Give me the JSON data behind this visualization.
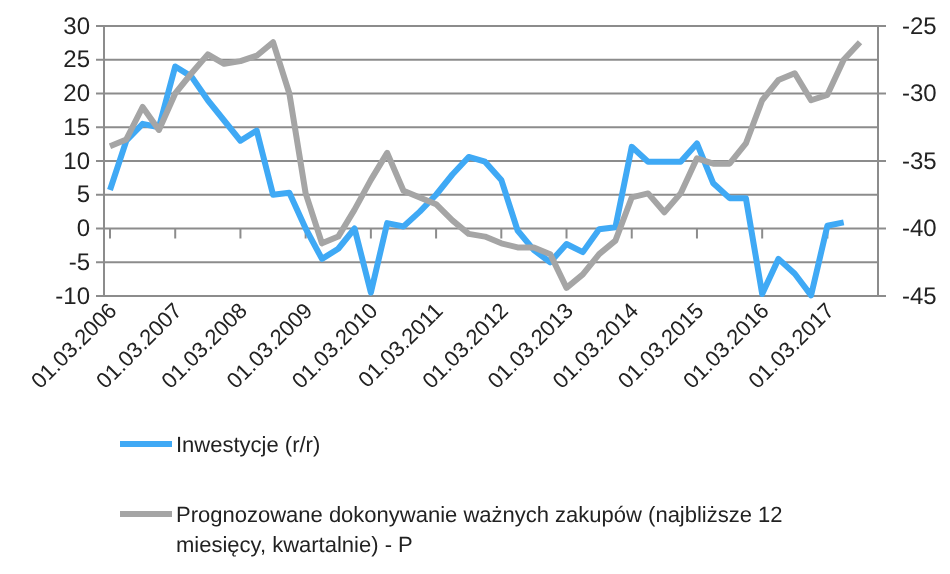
{
  "chart_data": {
    "type": "line",
    "categories": [
      "01.03.2006",
      null,
      null,
      null,
      "01.03.2007",
      null,
      null,
      null,
      "01.03.2008",
      null,
      null,
      null,
      "01.03.2009",
      null,
      null,
      null,
      "01.03.2010",
      null,
      null,
      null,
      "01.03.2011",
      null,
      null,
      null,
      "01.03.2012",
      null,
      null,
      null,
      "01.03.2013",
      null,
      null,
      null,
      "01.03.2014",
      null,
      null,
      null,
      "01.03.2015",
      null,
      null,
      null,
      "01.03.2016",
      null,
      null,
      null,
      "01.03.2017",
      null,
      null
    ],
    "series": [
      {
        "name": "Inwestycje (r/r)",
        "color": "#3fa9f5",
        "values": [
          5.7,
          13,
          15.5,
          15,
          24,
          22.5,
          19,
          16,
          13,
          14.5,
          5,
          5.3,
          0,
          -4.5,
          -3,
          0,
          -9.5,
          0.8,
          0.3,
          2.5,
          5,
          8,
          10.6,
          9.9,
          7.2,
          -0.3,
          -3.2,
          -5,
          -2.3,
          -3.5,
          -0.1,
          0.2,
          12.1,
          9.9,
          9.9,
          9.9,
          12.6,
          6.7,
          4.5,
          4.5,
          -9.7,
          -4.5,
          -6.7,
          -9.9,
          0.4,
          0.9,
          null
        ]
      },
      {
        "name": "Prognozowane dokonywanie ważnych zakupów (najbliższe 12 miesięcy, kwartalnie) - P",
        "color": "#a5a5a5",
        "axis": "y2",
        "values": [
          -33.9,
          -33.4,
          -31,
          -32.7,
          -30,
          -28.5,
          -27.1,
          -27.8,
          -27.6,
          -27.2,
          -26.2,
          -30,
          -37.4,
          -41.1,
          -40.6,
          -38.6,
          -36.4,
          -34.4,
          -37.2,
          -37.7,
          -38.2,
          -39.4,
          -40.4,
          -40.6,
          -41.1,
          -41.4,
          -41.4,
          -41.9,
          -44.4,
          -43.4,
          -41.9,
          -40.9,
          -37.7,
          -37.4,
          -38.8,
          -37.4,
          -34.8,
          -35.2,
          -35.2,
          -33.7,
          -30.5,
          -29,
          -28.5,
          -30.5,
          -30.1,
          -27.5,
          -26.2
        ]
      }
    ],
    "ylim": [
      -10,
      30
    ],
    "yticks": [
      -10,
      -5,
      0,
      5,
      10,
      15,
      20,
      25,
      30
    ],
    "y2lim": [
      -45,
      -25
    ],
    "y2ticks": [
      -45,
      -40,
      -35,
      -30,
      -25
    ],
    "grid": "y",
    "legend": "bottom",
    "marker": "none",
    "line_style": "solid"
  }
}
